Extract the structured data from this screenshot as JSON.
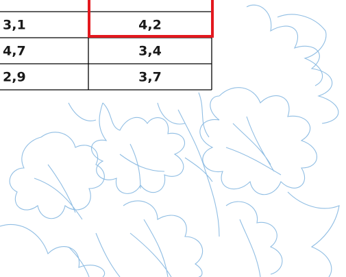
{
  "table": {
    "rows": [
      [
        "3,1",
        "4,2"
      ],
      [
        "4,7",
        "3,4"
      ],
      [
        "2,9",
        "3,7"
      ]
    ],
    "selected_cell": [
      0,
      1
    ]
  }
}
